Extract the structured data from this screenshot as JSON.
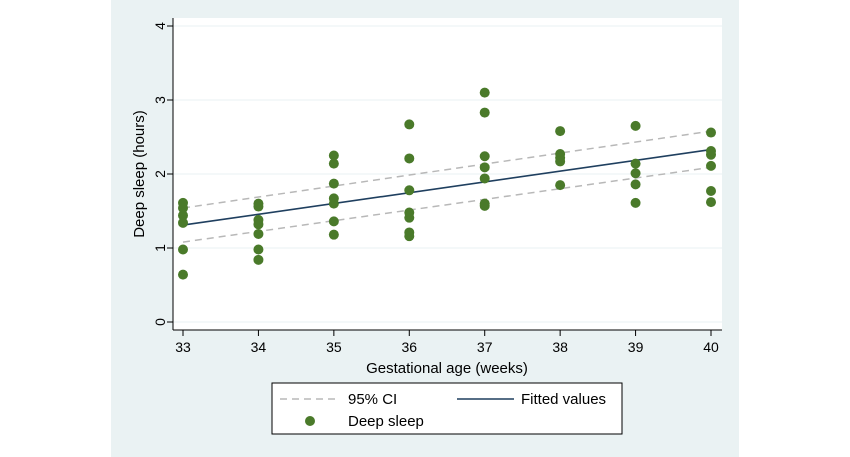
{
  "chart_data": {
    "type": "scatter",
    "xlabel": "Gestational age (weeks)",
    "ylabel": "Deep sleep (hours)",
    "xlim": [
      33,
      40
    ],
    "ylim": [
      0,
      4
    ],
    "xticks": [
      "33",
      "34",
      "35",
      "36",
      "37",
      "38",
      "39",
      "40"
    ],
    "yticks": [
      "0",
      "1",
      "2",
      "3",
      "4"
    ],
    "grid": true,
    "legend": {
      "position": "bottom",
      "entries": [
        {
          "label": "95% CI",
          "style": "dashed-line"
        },
        {
          "label": "Fitted values",
          "style": "solid-line"
        },
        {
          "label": "Deep sleep",
          "style": "marker"
        }
      ]
    },
    "series": [
      {
        "name": "Deep sleep",
        "type": "scatter",
        "color": "#4a7a2a",
        "points": [
          [
            33,
            1.61
          ],
          [
            33,
            1.54
          ],
          [
            33,
            1.44
          ],
          [
            33,
            1.34
          ],
          [
            33,
            0.98
          ],
          [
            33,
            0.64
          ],
          [
            34,
            1.6
          ],
          [
            34,
            1.56
          ],
          [
            34,
            1.38
          ],
          [
            34,
            1.32
          ],
          [
            34,
            1.19
          ],
          [
            34,
            0.98
          ],
          [
            34,
            0.84
          ],
          [
            35,
            2.25
          ],
          [
            35,
            2.14
          ],
          [
            35,
            1.87
          ],
          [
            35,
            1.67
          ],
          [
            35,
            1.6
          ],
          [
            35,
            1.36
          ],
          [
            35,
            1.18
          ],
          [
            36,
            2.67
          ],
          [
            36,
            2.21
          ],
          [
            36,
            1.78
          ],
          [
            36,
            1.48
          ],
          [
            36,
            1.41
          ],
          [
            36,
            1.21
          ],
          [
            36,
            1.16
          ],
          [
            37,
            3.1
          ],
          [
            37,
            2.83
          ],
          [
            37,
            2.24
          ],
          [
            37,
            2.09
          ],
          [
            37,
            1.94
          ],
          [
            37,
            1.6
          ],
          [
            37,
            1.57
          ],
          [
            38,
            2.58
          ],
          [
            38,
            2.27
          ],
          [
            38,
            2.22
          ],
          [
            38,
            2.17
          ],
          [
            38,
            1.85
          ],
          [
            39,
            2.65
          ],
          [
            39,
            2.14
          ],
          [
            39,
            2.01
          ],
          [
            39,
            1.86
          ],
          [
            39,
            1.61
          ],
          [
            40,
            2.56
          ],
          [
            40,
            2.31
          ],
          [
            40,
            2.26
          ],
          [
            40,
            2.11
          ],
          [
            40,
            1.77
          ],
          [
            40,
            1.62
          ]
        ]
      },
      {
        "name": "Fitted values",
        "type": "line",
        "color": "#1f3f5f",
        "x": [
          33,
          40
        ],
        "y": [
          1.31,
          2.33
        ]
      },
      {
        "name": "95% CI",
        "type": "line",
        "color": "#b8b8b8",
        "x": [
          33,
          40
        ],
        "upper": [
          1.54,
          2.58
        ],
        "lower": [
          1.08,
          2.09
        ]
      }
    ]
  }
}
